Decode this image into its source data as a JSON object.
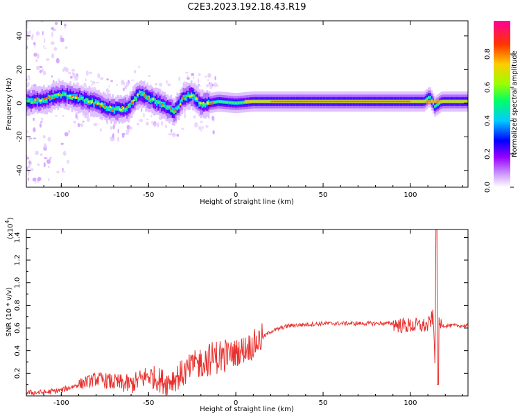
{
  "title": "C2E3.2023.192.18.43.R19",
  "chart_data": [
    {
      "type": "heatmap",
      "xlabel": "Height of straight line (km)",
      "ylabel": "Frequency (Hz)",
      "xlim": [
        -120,
        133
      ],
      "ylim": [
        -50,
        49
      ],
      "xticks": [
        -100,
        -50,
        0,
        50,
        100
      ],
      "yticks": [
        -40,
        -20,
        0,
        20,
        40
      ],
      "colorbar": {
        "label": "Normalized spectral amplitude",
        "range": [
          0,
          1
        ],
        "ticks": [
          "0.0",
          "0.2",
          "0.4",
          "0.6",
          "0.8"
        ],
        "colors": [
          "#ffffff",
          "#cc99ff",
          "#9900ff",
          "#0000ff",
          "#00ccff",
          "#00ff66",
          "#99ff00",
          "#ffcc00",
          "#ff3300",
          "#ff0099"
        ]
      },
      "ridge": {
        "x": [
          -120,
          -110,
          -100,
          -90,
          -80,
          -70,
          -62,
          -55,
          -48,
          -40,
          -35,
          -30,
          -25,
          -20,
          -10,
          0,
          10,
          20,
          50,
          100,
          108,
          111,
          114,
          118,
          133
        ],
        "y": [
          1,
          2,
          5,
          3,
          0,
          -4,
          -3,
          6,
          2,
          -2,
          -5,
          3,
          5,
          -1,
          1,
          0,
          1,
          1,
          1,
          1,
          1,
          4,
          -2,
          1,
          1
        ]
      }
    },
    {
      "type": "line",
      "xlabel": "Height of straight line (km)",
      "ylabel": "SNR (10 * v/v)",
      "y_multiplier": "(x10",
      "y_multiplier_exp": "4",
      "y_multiplier_close": ")",
      "xlim": [
        -120,
        133
      ],
      "ylim": [
        0,
        1.47
      ],
      "xticks": [
        -100,
        -50,
        0,
        50,
        100
      ],
      "yticks": [
        0.2,
        0.4,
        0.6,
        0.8,
        1.0,
        1.2,
        1.4
      ],
      "color": "#e8302e",
      "series": [
        {
          "x": [
            -120,
            -110,
            -100,
            -90,
            -80,
            -70,
            -60,
            -50,
            -40,
            -30,
            -25,
            -20,
            -10,
            0,
            10,
            20,
            30,
            40,
            50,
            60,
            70,
            80,
            90,
            95,
            100,
            105,
            110,
            113,
            114,
            115,
            116,
            117,
            120,
            133
          ],
          "y": [
            0.03,
            0.03,
            0.05,
            0.1,
            0.15,
            0.12,
            0.1,
            0.18,
            0.12,
            0.2,
            0.25,
            0.3,
            0.35,
            0.38,
            0.45,
            0.57,
            0.62,
            0.63,
            0.64,
            0.64,
            0.64,
            0.64,
            0.64,
            0.62,
            0.62,
            0.62,
            0.62,
            0.7,
            0.35,
            1.47,
            0.62,
            0.63,
            0.62,
            0.62
          ]
        }
      ]
    }
  ]
}
